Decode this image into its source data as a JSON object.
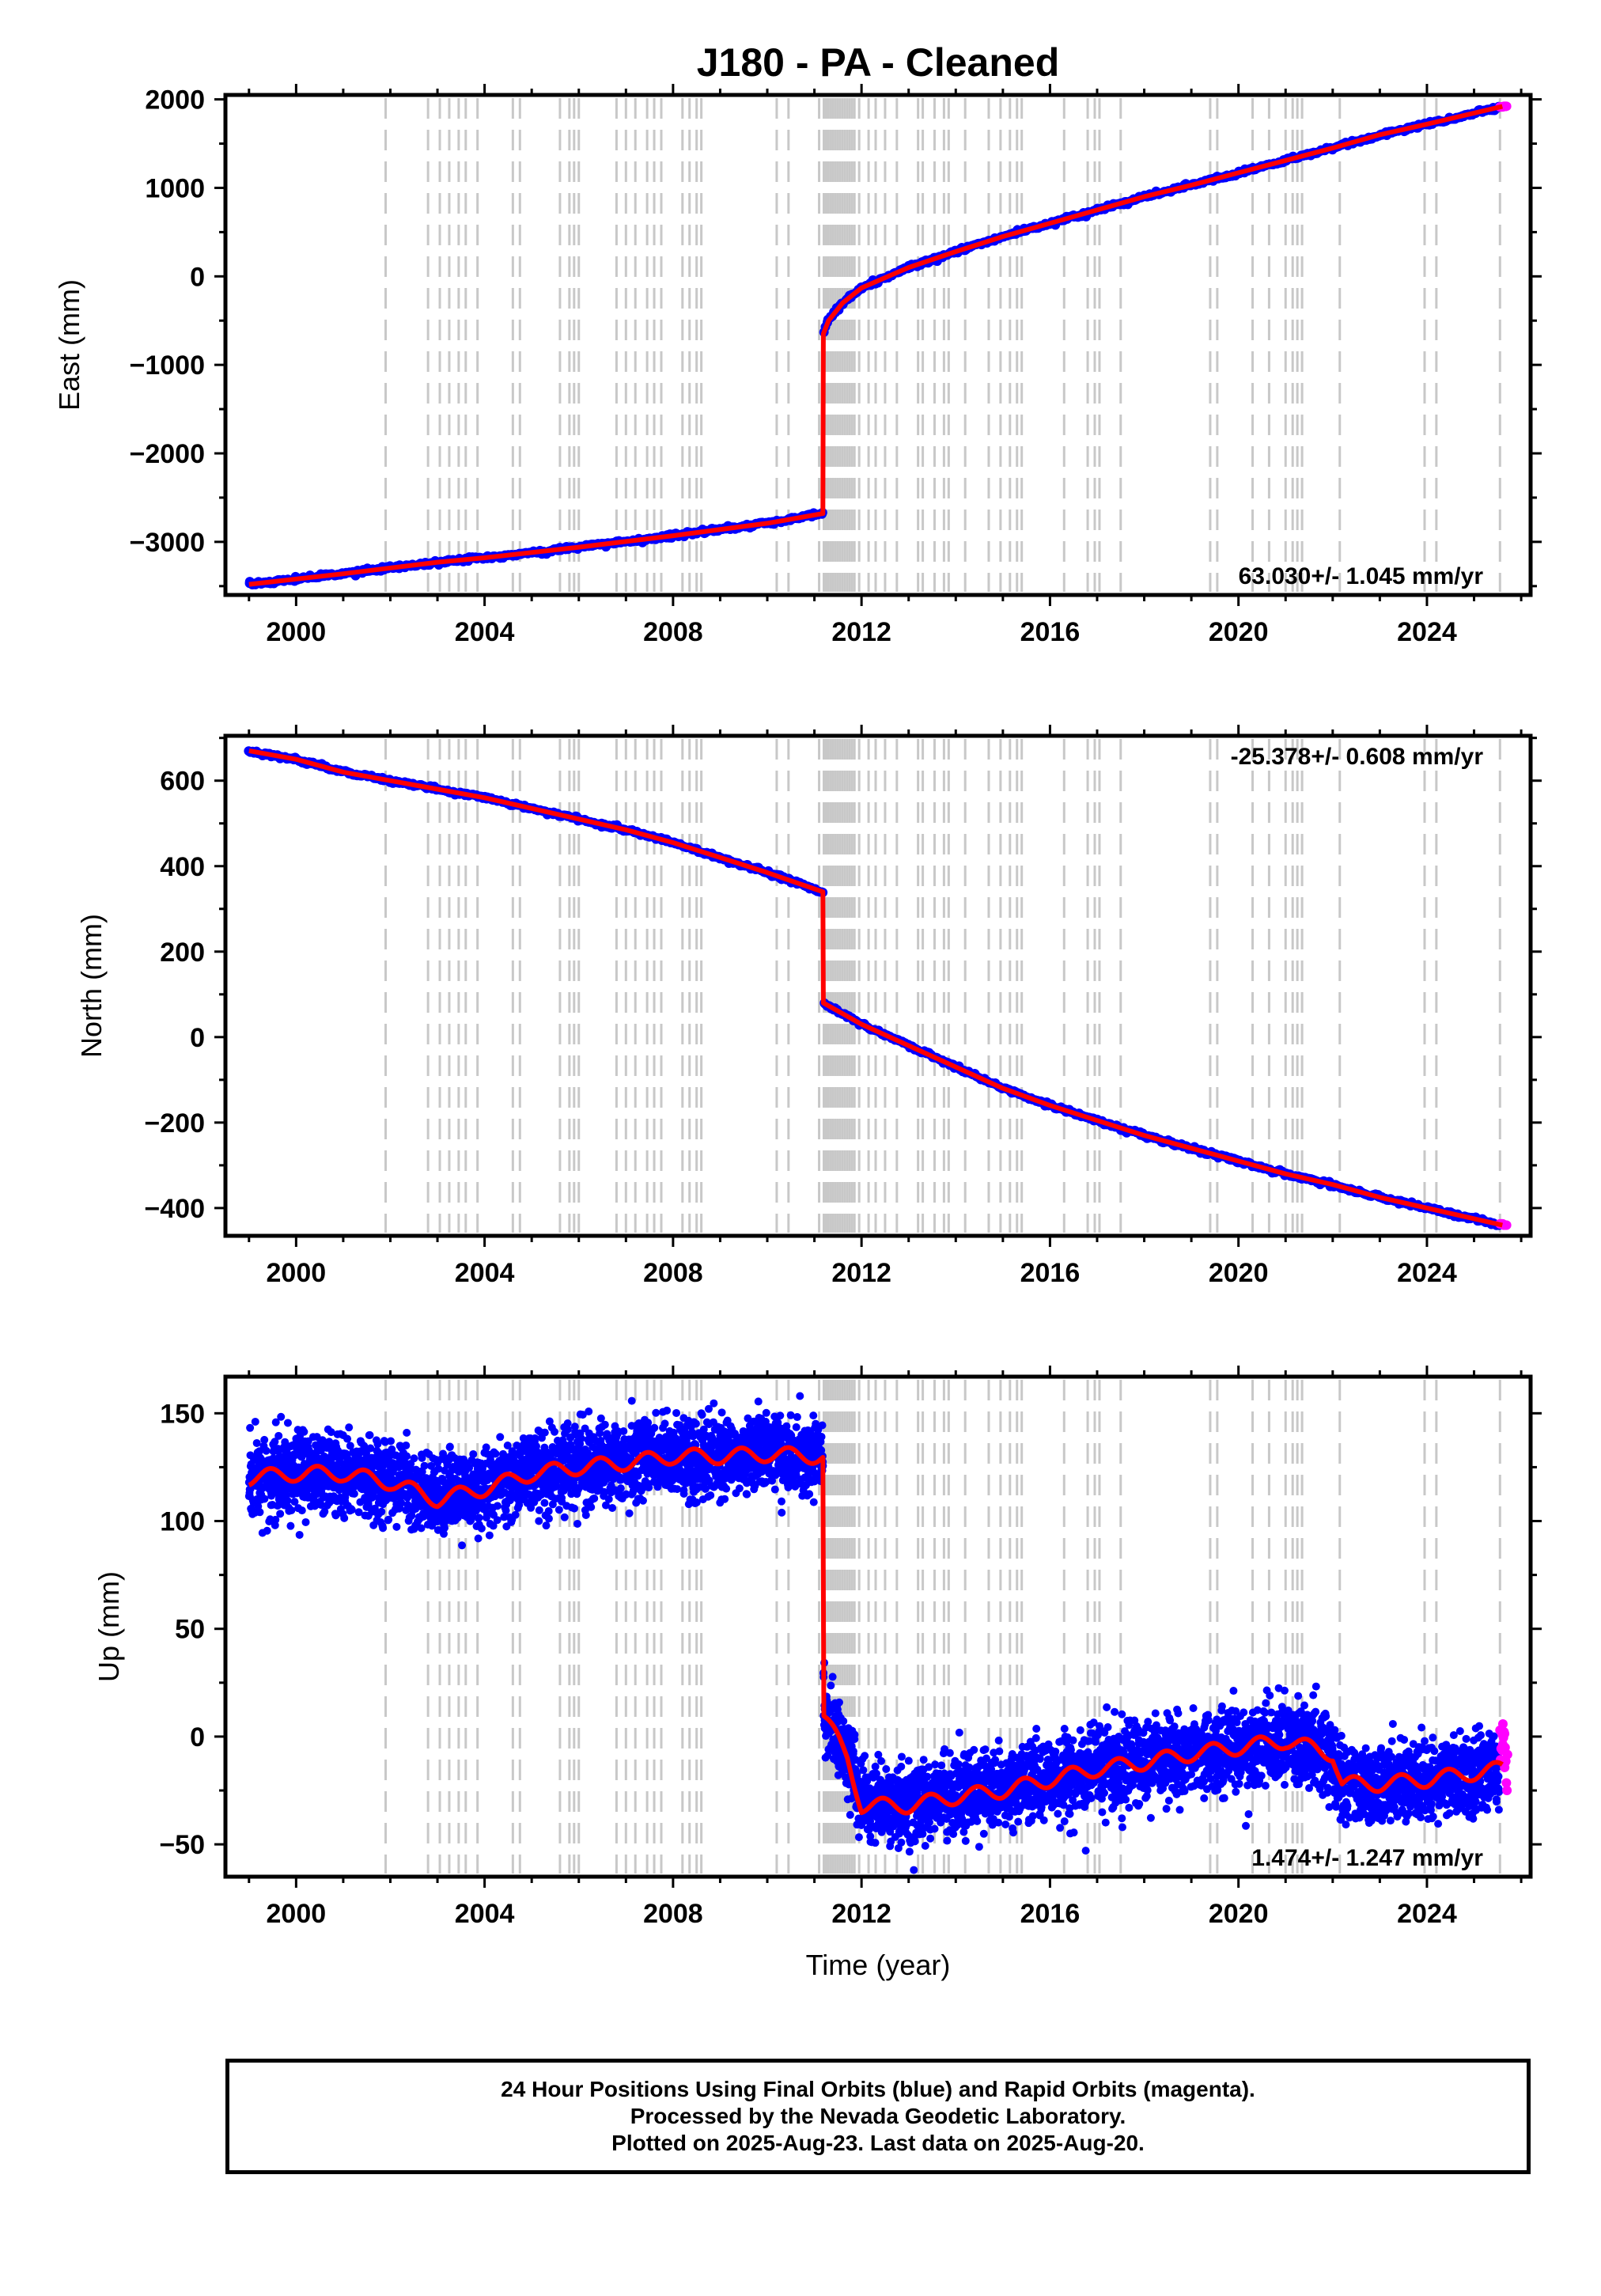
{
  "title": "J180  - PA - Cleaned",
  "colors": {
    "final_orbits": "#0000ff",
    "rapid_orbits": "#ff00ff",
    "model": "#ff0000",
    "event_lines": "#c8c8c8",
    "frame": "#000000"
  },
  "x_axis_label": "Time (year)",
  "footer": {
    "line1": "24 Hour Positions Using Final Orbits (blue) and Rapid Orbits (magenta).",
    "line2": "Processed by the Nevada Geodetic Laboratory.",
    "line3": "Plotted on 2025-Aug-23. Last data on 2025-Aug-20."
  },
  "chart_data": [
    {
      "type": "scatter",
      "ylabel": "East (mm)",
      "xlabel": "",
      "xlim": [
        1998.5,
        2026.2
      ],
      "ylim": [
        -3600,
        2050
      ],
      "x_ticks": [
        2000,
        2004,
        2008,
        2012,
        2016,
        2020,
        2024
      ],
      "y_ticks": [
        2000,
        1000,
        0,
        -1000,
        -2000,
        -3000
      ],
      "grid": false,
      "rate_text": "63.030+/- 1.045 mm/yr",
      "rate_position": "bottom-right",
      "series": [
        {
          "points": [
            [
              1999.0,
              -3480
            ],
            [
              2001.0,
              -3360
            ],
            [
              2003.0,
              -3230
            ],
            [
              2004.0,
              -3180
            ],
            [
              2006.0,
              -3060
            ],
            [
              2008.0,
              -2930
            ],
            [
              2010.0,
              -2790
            ],
            [
              2011.18,
              -2680
            ],
            [
              2011.19,
              -650
            ],
            [
              2011.3,
              -500
            ],
            [
              2011.6,
              -300
            ],
            [
              2012.0,
              -130
            ],
            [
              2013.0,
              100
            ],
            [
              2014.0,
              280
            ],
            [
              2015.0,
              450
            ],
            [
              2016.0,
              600
            ],
            [
              2017.0,
              750
            ],
            [
              2018.0,
              900
            ],
            [
              2019.0,
              1030
            ],
            [
              2020.0,
              1170
            ],
            [
              2021.0,
              1310
            ],
            [
              2022.0,
              1450
            ],
            [
              2023.0,
              1600
            ],
            [
              2024.0,
              1720
            ],
            [
              2025.6,
              1920
            ]
          ],
          "rapid_points": [
            [
              2025.55,
              1915
            ],
            [
              2025.63,
              1922
            ]
          ]
        }
      ]
    },
    {
      "type": "scatter",
      "ylabel": "North (mm)",
      "xlabel": "",
      "xlim": [
        1998.5,
        2026.2
      ],
      "ylim": [
        -465,
        705
      ],
      "x_ticks": [
        2000,
        2004,
        2008,
        2012,
        2016,
        2020,
        2024
      ],
      "y_ticks": [
        600,
        400,
        200,
        0,
        -200,
        -400
      ],
      "grid": false,
      "rate_text": "-25.378+/- 0.608 mm/yr",
      "rate_position": "top-right",
      "series": [
        {
          "points": [
            [
              1999.0,
              670
            ],
            [
              2000.0,
              650
            ],
            [
              2001.0,
              620
            ],
            [
              2002.0,
              600
            ],
            [
              2003.0,
              580
            ],
            [
              2004.0,
              560
            ],
            [
              2005.0,
              535
            ],
            [
              2006.0,
              510
            ],
            [
              2007.0,
              485
            ],
            [
              2008.0,
              455
            ],
            [
              2009.0,
              420
            ],
            [
              2010.0,
              385
            ],
            [
              2011.18,
              340
            ],
            [
              2011.19,
              80
            ],
            [
              2012.0,
              30
            ],
            [
              2013.0,
              -20
            ],
            [
              2014.0,
              -70
            ],
            [
              2015.0,
              -120
            ],
            [
              2016.0,
              -160
            ],
            [
              2017.0,
              -195
            ],
            [
              2018.0,
              -230
            ],
            [
              2019.0,
              -260
            ],
            [
              2020.0,
              -290
            ],
            [
              2021.0,
              -320
            ],
            [
              2022.0,
              -345
            ],
            [
              2023.0,
              -375
            ],
            [
              2024.0,
              -400
            ],
            [
              2025.6,
              -440
            ]
          ],
          "rapid_points": [
            [
              2025.55,
              -437
            ],
            [
              2025.63,
              -440
            ]
          ]
        }
      ]
    },
    {
      "type": "scatter",
      "ylabel": "Up (mm)",
      "xlabel": "Time (year)",
      "xlim": [
        1998.5,
        2026.2
      ],
      "ylim": [
        -65,
        167
      ],
      "x_ticks": [
        2000,
        2004,
        2008,
        2012,
        2016,
        2020,
        2024
      ],
      "y_ticks": [
        150,
        100,
        50,
        0,
        -50
      ],
      "grid": false,
      "rate_text": "1.474+/- 1.247 mm/yr",
      "rate_position": "bottom-right",
      "series": [
        {
          "points": [
            [
              1999.0,
              120
            ],
            [
              2000.0,
              122
            ],
            [
              2001.0,
              122
            ],
            [
              2002.0,
              118
            ],
            [
              2003.0,
              110
            ],
            [
              2004.0,
              115
            ],
            [
              2005.0,
              122
            ],
            [
              2006.0,
              125
            ],
            [
              2007.0,
              127
            ],
            [
              2008.0,
              130
            ],
            [
              2009.0,
              130
            ],
            [
              2010.0,
              131
            ],
            [
              2011.18,
              130
            ],
            [
              2011.19,
              10
            ],
            [
              2011.7,
              -10
            ],
            [
              2012.0,
              -32
            ],
            [
              2013.0,
              -32
            ],
            [
              2014.0,
              -28
            ],
            [
              2015.0,
              -25
            ],
            [
              2016.0,
              -20
            ],
            [
              2017.0,
              -15
            ],
            [
              2018.0,
              -12
            ],
            [
              2019.0,
              -8
            ],
            [
              2020.0,
              -5
            ],
            [
              2021.0,
              -2
            ],
            [
              2022.0,
              -8
            ],
            [
              2022.2,
              -22
            ],
            [
              2023.0,
              -22
            ],
            [
              2024.0,
              -20
            ],
            [
              2025.6,
              -15
            ]
          ],
          "scatter_sd": 9,
          "rapid_points": [
            [
              2025.55,
              -5
            ],
            [
              2025.6,
              2
            ],
            [
              2025.65,
              -12
            ]
          ]
        }
      ]
    }
  ],
  "event_lines": [
    2001.9,
    2002.8,
    2003.05,
    2003.25,
    2003.45,
    2003.6,
    2003.85,
    2004.6,
    2004.75,
    2005.6,
    2005.8,
    2005.9,
    2006.0,
    2006.8,
    2007.0,
    2007.2,
    2007.45,
    2007.6,
    2007.75,
    2008.2,
    2008.35,
    2008.5,
    2008.6,
    2010.2,
    2010.45,
    2011.1,
    2011.2,
    2011.25,
    2011.3,
    2011.35,
    2011.4,
    2011.45,
    2011.5,
    2011.55,
    2011.6,
    2011.65,
    2011.7,
    2011.75,
    2011.8,
    2011.85,
    2011.95,
    2012.15,
    2012.3,
    2012.5,
    2012.75,
    2013.2,
    2013.3,
    2013.55,
    2013.75,
    2013.85,
    2014.2,
    2014.7,
    2014.95,
    2015.15,
    2015.3,
    2015.4,
    2016.3,
    2016.8,
    2016.95,
    2017.05,
    2017.5,
    2019.4,
    2019.55,
    2020.3,
    2020.65,
    2021.0,
    2021.15,
    2021.25,
    2021.35,
    2022.15,
    2023.95,
    2024.2,
    2025.55
  ]
}
